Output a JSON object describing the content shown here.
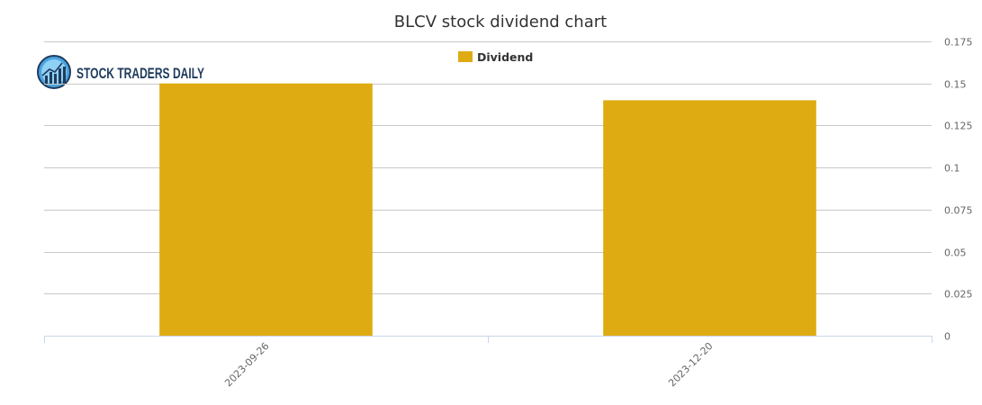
{
  "logo": {
    "text": "STOCK TRADERS DAILY",
    "icon": "bar-chart-globe-icon"
  },
  "chart_data": {
    "type": "bar",
    "title": "BLCV stock dividend chart",
    "categories": [
      "2023-09-26",
      "2023-12-20"
    ],
    "series": [
      {
        "name": "Dividend",
        "values": [
          0.15,
          0.14
        ],
        "color": "#deac12"
      }
    ],
    "ylim": [
      0,
      0.175
    ],
    "yticks": [
      0,
      0.025,
      0.05,
      0.075,
      0.1,
      0.125,
      0.15,
      0.175
    ],
    "ytick_labels": [
      "0",
      "0.025",
      "0.05",
      "0.075",
      "0.1",
      "0.125",
      "0.15",
      "0.175"
    ],
    "yaxis_side": "right",
    "grid": true,
    "legend_position": "top-center",
    "xlabel": "",
    "ylabel": ""
  }
}
